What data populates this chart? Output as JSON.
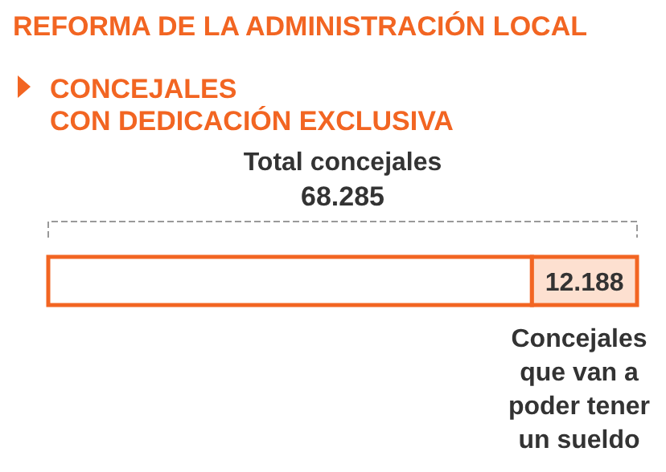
{
  "chart_data": {
    "type": "bar",
    "orientation": "horizontal",
    "stacked": true,
    "title": "REFORMA DE LA ADMINISTRACIÓN LOCAL",
    "subtitle": "CONCEJALES\nCON DEDICACIÓN EXCLUSIVA",
    "categories": [
      null
    ],
    "series": [
      {
        "color": "#ffffff",
        "values": [
          56097
        ]
      },
      {
        "color": "#fde0d0",
        "values": [
          12188
        ],
        "value_labels": [
          "12.188"
        ]
      }
    ],
    "totals": [
      "68.285"
    ],
    "annotations": [
      "Total concejales",
      "Concejales\nque van a\npoder tener\nun sueldo"
    ]
  }
}
